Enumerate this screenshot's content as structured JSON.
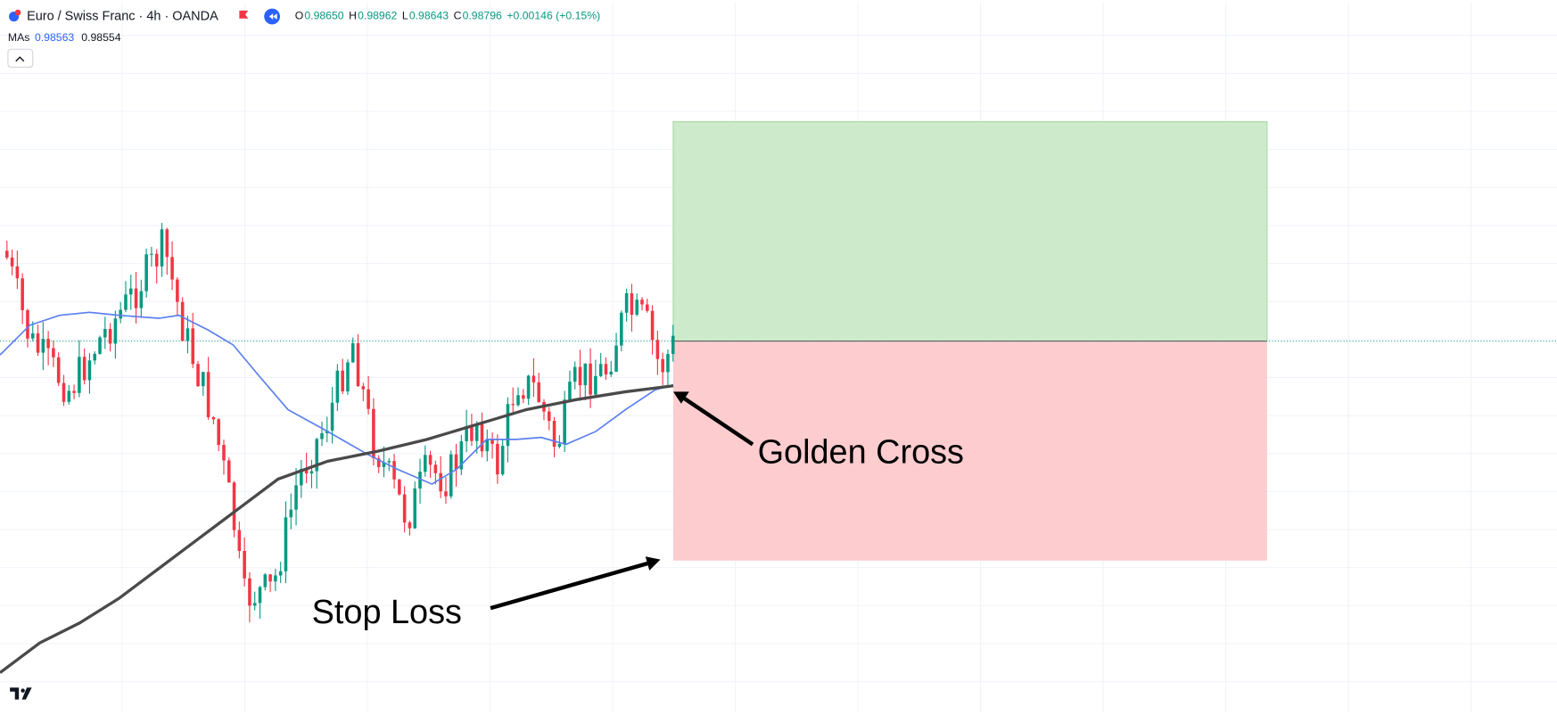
{
  "header": {
    "title": "Euro / Swiss Franc · 4h · OANDA",
    "ohlc": [
      {
        "key": "O",
        "value": "0.98650"
      },
      {
        "key": "H",
        "value": "0.98962"
      },
      {
        "key": "L",
        "value": "0.98643"
      },
      {
        "key": "C",
        "value": "0.98796"
      }
    ],
    "change": "+0.00146 (+0.15%)"
  },
  "indicators": {
    "label": "MAs",
    "values": [
      "0.98563",
      "0.98554"
    ]
  },
  "annotations": [
    "Golden Cross",
    "Stop Loss"
  ]
}
